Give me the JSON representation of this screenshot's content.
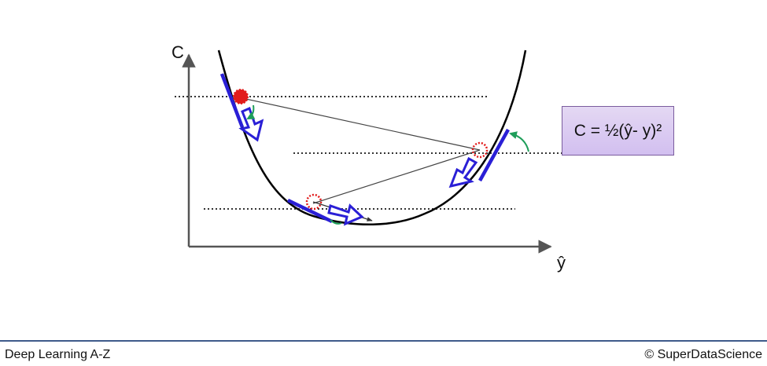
{
  "diagram": {
    "y_axis_label": "C",
    "x_axis_label": "ŷ",
    "formula": "C = ½(ŷ- y)²"
  },
  "footer": {
    "left_text": "Deep Learning A-Z",
    "right_text": "© SuperDataScience"
  },
  "colors": {
    "curve": "#000000",
    "tangent": "#2a1fd6",
    "step_arrow_outline": "#2a1fd6",
    "ball_fill": "#e11b1b",
    "ball_outline_dotted": "#e11b1b",
    "angle_arc": "#1f9e5a",
    "formula_box": "#d9c9f2",
    "footer_rule": "#3e5a8a"
  },
  "icons": [
    "red-ball-icon",
    "hollow-arrow-icon",
    "angle-arc-icon"
  ]
}
